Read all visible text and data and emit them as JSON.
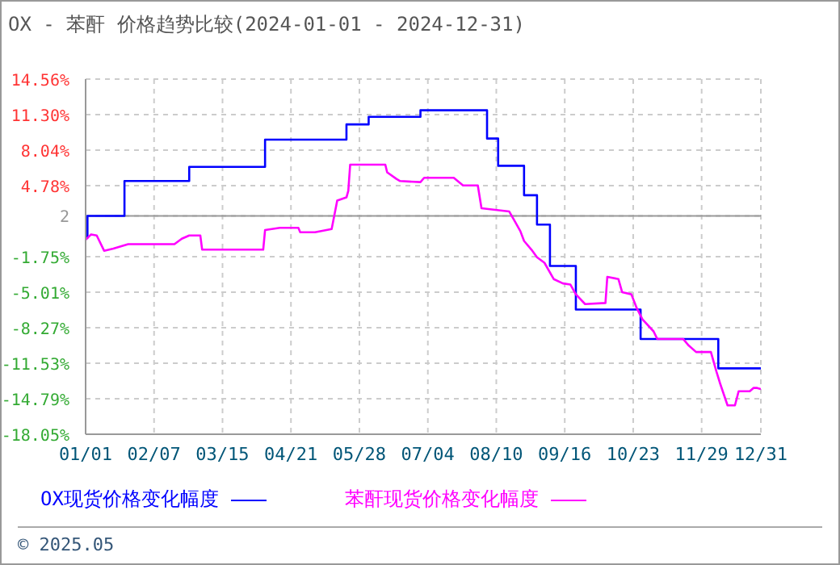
{
  "chart_data": {
    "type": "line",
    "title": "OX - 苯酐 价格趋势比较(2024-01-01 - 2024-12-31)",
    "xlim": [
      "2024-01-01",
      "2024-12-31"
    ],
    "xticks": [
      {
        "value": "2024-01-01",
        "label": "01/01"
      },
      {
        "value": "2024-02-07",
        "label": "02/07"
      },
      {
        "value": "2024-03-15",
        "label": "03/15"
      },
      {
        "value": "2024-04-21",
        "label": "04/21"
      },
      {
        "value": "2024-05-28",
        "label": "05/28"
      },
      {
        "value": "2024-07-04",
        "label": "07/04"
      },
      {
        "value": "2024-08-10",
        "label": "08/10"
      },
      {
        "value": "2024-09-16",
        "label": "09/16"
      },
      {
        "value": "2024-10-23",
        "label": "10/23"
      },
      {
        "value": "2024-11-29",
        "label": "11/29"
      },
      {
        "value": "2024-12-31",
        "label": "12/31"
      }
    ],
    "ylim": [
      -18.05,
      14.56
    ],
    "yticks": [
      {
        "value": 14.56,
        "label": "14.56%"
      },
      {
        "value": 11.3,
        "label": "11.30%"
      },
      {
        "value": 8.04,
        "label": "8.04%"
      },
      {
        "value": 4.78,
        "label": "4.78%"
      },
      2,
      {
        "value": -1.75,
        "label": "-1.75%"
      },
      {
        "value": -5.01,
        "label": "-5.01%"
      },
      {
        "value": -8.27,
        "label": "-8.27%"
      },
      {
        "value": -11.53,
        "label": "-11.53%"
      },
      {
        "value": -14.79,
        "label": "-14.79%"
      },
      {
        "value": -18.05,
        "label": "-18.05%"
      }
    ],
    "ref_lines": [
      {
        "axis": "y",
        "value": 2,
        "color": "#999999"
      }
    ],
    "grid": true,
    "legend": "bottom",
    "annotations": [
      "© 2025.05"
    ],
    "series": [
      {
        "name": "OX现货价格变化幅度",
        "type": "step",
        "color": "#0000ff",
        "x": [
          "2024-01-01",
          "2024-01-02",
          "2024-01-22",
          "2024-02-26",
          "2024-04-07",
          "2024-05-21",
          "2024-06-02",
          "2024-06-30",
          "2024-08-05",
          "2024-08-11",
          "2024-08-25",
          "2024-09-01",
          "2024-09-08",
          "2024-09-22",
          "2024-10-27",
          "2024-12-08",
          "2024-12-31"
        ],
        "values": [
          0,
          2,
          5.2,
          6.5,
          9.0,
          10.4,
          11.1,
          11.7,
          9.1,
          6.6,
          3.9,
          1.2,
          -2.6,
          -6.6,
          -9.3,
          -12.0,
          -12.0
        ]
      },
      {
        "name": "苯酐现货价格变化幅度",
        "type": "line",
        "color": "#ff00ff",
        "x": [
          "2024-01-01",
          "2024-01-04",
          "2024-01-07",
          "2024-01-11",
          "2024-01-16",
          "2024-01-24",
          "2024-02-18",
          "2024-02-22",
          "2024-02-26",
          "2024-03-03",
          "2024-03-04",
          "2024-04-06",
          "2024-04-07",
          "2024-04-15",
          "2024-04-25",
          "2024-04-26",
          "2024-05-04",
          "2024-05-13",
          "2024-05-16",
          "2024-05-21",
          "2024-05-22",
          "2024-05-23",
          "2024-06-11",
          "2024-06-12",
          "2024-06-17",
          "2024-06-19",
          "2024-06-30",
          "2024-07-02",
          "2024-07-18",
          "2024-07-23",
          "2024-07-31",
          "2024-08-02",
          "2024-08-17",
          "2024-08-20",
          "2024-08-23",
          "2024-08-25",
          "2024-08-29",
          "2024-09-01",
          "2024-09-05",
          "2024-09-10",
          "2024-09-15",
          "2024-09-19",
          "2024-09-22",
          "2024-09-27",
          "2024-10-08",
          "2024-10-09",
          "2024-10-15",
          "2024-10-17",
          "2024-10-22",
          "2024-10-25",
          "2024-10-28",
          "2024-11-03",
          "2024-11-05",
          "2024-11-19",
          "2024-11-22",
          "2024-11-26",
          "2024-12-04",
          "2024-12-07",
          "2024-12-09",
          "2024-12-13",
          "2024-12-17",
          "2024-12-19",
          "2024-12-25",
          "2024-12-27",
          "2024-12-29",
          "2024-12-31"
        ],
        "values": [
          -0.2,
          0.3,
          0.2,
          -1.2,
          -1.0,
          -0.6,
          -0.6,
          -0.1,
          0.2,
          0.2,
          -1.1,
          -1.1,
          0.7,
          0.9,
          0.9,
          0.5,
          0.5,
          0.8,
          3.4,
          3.7,
          4.3,
          6.7,
          6.7,
          6.0,
          5.4,
          5.2,
          5.1,
          5.5,
          5.5,
          4.8,
          4.8,
          2.7,
          2.4,
          1.5,
          0.6,
          -0.3,
          -1.1,
          -1.8,
          -2.3,
          -3.8,
          -4.2,
          -4.3,
          -5.2,
          -6.1,
          -6.0,
          -3.6,
          -3.8,
          -5.0,
          -5.2,
          -6.5,
          -7.5,
          -8.6,
          -9.3,
          -9.3,
          -9.9,
          -10.5,
          -10.5,
          -12.3,
          -13.4,
          -15.4,
          -15.4,
          -14.1,
          -14.1,
          -13.8,
          -13.8,
          -13.9
        ]
      }
    ]
  }
}
